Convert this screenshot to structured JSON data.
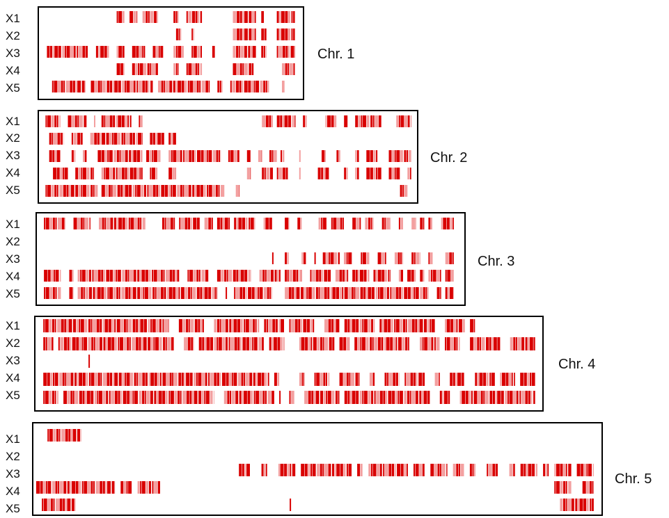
{
  "row_labels": [
    "X1",
    "X2",
    "X3",
    "X4",
    "X5"
  ],
  "colors": {
    "mark_dark": "#d90000",
    "mark_light": "#f3a0a0",
    "frame": "#000000",
    "text": "#111111"
  },
  "chromosomes": [
    {
      "label": "Chr. 1",
      "tracks": [
        [
          [
            0.29,
            0.32
          ],
          [
            0.34,
            0.37
          ],
          [
            0.39,
            0.45
          ],
          [
            0.51,
            0.53
          ],
          [
            0.56,
            0.62
          ],
          [
            0.74,
            0.83
          ],
          [
            0.85,
            0.86
          ],
          [
            0.91,
            0.98
          ]
        ],
        [
          [
            0.52,
            0.54
          ],
          [
            0.58,
            0.59
          ],
          [
            0.74,
            0.83
          ],
          [
            0.85,
            0.87
          ],
          [
            0.91,
            0.98
          ]
        ],
        [
          [
            0.02,
            0.18
          ],
          [
            0.21,
            0.26
          ],
          [
            0.29,
            0.32
          ],
          [
            0.35,
            0.4
          ],
          [
            0.43,
            0.47
          ],
          [
            0.51,
            0.55
          ],
          [
            0.58,
            0.62
          ],
          [
            0.66,
            0.67
          ],
          [
            0.74,
            0.83
          ],
          [
            0.85,
            0.87
          ],
          [
            0.91,
            0.98
          ]
        ],
        [
          [
            0.29,
            0.32
          ],
          [
            0.35,
            0.45
          ],
          [
            0.51,
            0.53
          ],
          [
            0.56,
            0.62
          ],
          [
            0.74,
            0.82
          ],
          [
            0.93,
            0.98
          ]
        ],
        [
          [
            0.04,
            0.17
          ],
          [
            0.19,
            0.43
          ],
          [
            0.45,
            0.65
          ],
          [
            0.68,
            0.7
          ],
          [
            0.73,
            0.88
          ],
          [
            0.93,
            0.94
          ]
        ]
      ]
    },
    {
      "label": "Chr. 2",
      "tracks": [
        [
          [
            0.01,
            0.05
          ],
          [
            0.07,
            0.12
          ],
          [
            0.14,
            0.14
          ],
          [
            0.16,
            0.24
          ],
          [
            0.26,
            0.27
          ],
          [
            0.59,
            0.62
          ],
          [
            0.63,
            0.68
          ],
          [
            0.7,
            0.71
          ],
          [
            0.76,
            0.79
          ],
          [
            0.81,
            0.82
          ],
          [
            0.84,
            0.91
          ],
          [
            0.95,
            0.99
          ]
        ],
        [
          [
            0.02,
            0.06
          ],
          [
            0.08,
            0.11
          ],
          [
            0.13,
            0.27
          ],
          [
            0.29,
            0.33
          ],
          [
            0.34,
            0.36
          ]
        ],
        [
          [
            0.02,
            0.05
          ],
          [
            0.08,
            0.09
          ],
          [
            0.11,
            0.12
          ],
          [
            0.15,
            0.27
          ],
          [
            0.28,
            0.32
          ],
          [
            0.34,
            0.48
          ],
          [
            0.5,
            0.53
          ],
          [
            0.55,
            0.56
          ],
          [
            0.58,
            0.59
          ],
          [
            0.61,
            0.63
          ],
          [
            0.64,
            0.65
          ],
          [
            0.69,
            0.69
          ],
          [
            0.75,
            0.76
          ],
          [
            0.79,
            0.8
          ],
          [
            0.84,
            0.85
          ],
          [
            0.87,
            0.9
          ],
          [
            0.93,
            0.99
          ]
        ],
        [
          [
            0.03,
            0.07
          ],
          [
            0.09,
            0.14
          ],
          [
            0.16,
            0.27
          ],
          [
            0.29,
            0.31
          ],
          [
            0.34,
            0.36
          ],
          [
            0.55,
            0.56
          ],
          [
            0.59,
            0.62
          ],
          [
            0.63,
            0.66
          ],
          [
            0.69,
            0.69
          ],
          [
            0.74,
            0.77
          ],
          [
            0.81,
            0.82
          ],
          [
            0.84,
            0.85
          ],
          [
            0.87,
            0.91
          ],
          [
            0.93,
            0.96
          ],
          [
            0.98,
            0.99
          ]
        ],
        [
          [
            0.01,
            0.15
          ],
          [
            0.16,
            0.49
          ],
          [
            0.52,
            0.53
          ],
          [
            0.96,
            0.98
          ]
        ]
      ]
    },
    {
      "label": "Chr. 3",
      "tracks": [
        [
          [
            0.01,
            0.06
          ],
          [
            0.08,
            0.12
          ],
          [
            0.14,
            0.25
          ],
          [
            0.29,
            0.32
          ],
          [
            0.33,
            0.38
          ],
          [
            0.39,
            0.41
          ],
          [
            0.42,
            0.45
          ],
          [
            0.46,
            0.51
          ],
          [
            0.53,
            0.55
          ],
          [
            0.58,
            0.59
          ],
          [
            0.61,
            0.62
          ],
          [
            0.66,
            0.68
          ],
          [
            0.69,
            0.72
          ],
          [
            0.74,
            0.76
          ],
          [
            0.77,
            0.79
          ],
          [
            0.81,
            0.83
          ],
          [
            0.85,
            0.86
          ],
          [
            0.88,
            0.89
          ],
          [
            0.9,
            0.91
          ],
          [
            0.92,
            0.93
          ],
          [
            0.95,
            0.98
          ]
        ],
        [],
        [
          [
            0.55,
            0.55
          ],
          [
            0.58,
            0.59
          ],
          [
            0.62,
            0.63
          ],
          [
            0.65,
            0.65
          ],
          [
            0.67,
            0.71
          ],
          [
            0.72,
            0.74
          ],
          [
            0.76,
            0.78
          ],
          [
            0.8,
            0.82
          ],
          [
            0.84,
            0.86
          ],
          [
            0.88,
            0.9
          ],
          [
            0.92,
            0.93
          ],
          [
            0.96,
            0.98
          ]
        ],
        [
          [
            0.01,
            0.05
          ],
          [
            0.07,
            0.08
          ],
          [
            0.09,
            0.33
          ],
          [
            0.35,
            0.4
          ],
          [
            0.42,
            0.5
          ],
          [
            0.52,
            0.57
          ],
          [
            0.58,
            0.62
          ],
          [
            0.64,
            0.69
          ],
          [
            0.7,
            0.73
          ],
          [
            0.74,
            0.78
          ],
          [
            0.79,
            0.83
          ],
          [
            0.85,
            0.86
          ],
          [
            0.87,
            0.89
          ],
          [
            0.9,
            0.91
          ],
          [
            0.92,
            0.95
          ],
          [
            0.96,
            0.98
          ]
        ],
        [
          [
            0.01,
            0.05
          ],
          [
            0.07,
            0.08
          ],
          [
            0.09,
            0.42
          ],
          [
            0.44,
            0.44
          ],
          [
            0.46,
            0.55
          ],
          [
            0.58,
            0.92
          ],
          [
            0.94,
            0.95
          ],
          [
            0.96,
            0.98
          ]
        ]
      ]
    },
    {
      "label": "Chr. 4",
      "tracks": [
        [
          [
            0.01,
            0.26
          ],
          [
            0.28,
            0.33
          ],
          [
            0.35,
            0.44
          ],
          [
            0.45,
            0.49
          ],
          [
            0.5,
            0.55
          ],
          [
            0.57,
            0.6
          ],
          [
            0.61,
            0.67
          ],
          [
            0.68,
            0.79
          ],
          [
            0.81,
            0.85
          ],
          [
            0.86,
            0.87
          ]
        ],
        [
          [
            0.01,
            0.03
          ],
          [
            0.04,
            0.27
          ],
          [
            0.29,
            0.31
          ],
          [
            0.32,
            0.45
          ],
          [
            0.46,
            0.49
          ],
          [
            0.52,
            0.59
          ],
          [
            0.6,
            0.62
          ],
          [
            0.63,
            0.74
          ],
          [
            0.76,
            0.8
          ],
          [
            0.81,
            0.84
          ],
          [
            0.86,
            0.92
          ],
          [
            0.94,
            0.99
          ]
        ],
        [
          [
            0.1,
            0.1
          ]
        ],
        [
          [
            0.01,
            0.46
          ],
          [
            0.47,
            0.48
          ],
          [
            0.52,
            0.53
          ],
          [
            0.55,
            0.58
          ],
          [
            0.6,
            0.64
          ],
          [
            0.66,
            0.67
          ],
          [
            0.69,
            0.72
          ],
          [
            0.73,
            0.77
          ],
          [
            0.79,
            0.8
          ],
          [
            0.82,
            0.85
          ],
          [
            0.87,
            0.91
          ],
          [
            0.92,
            0.95
          ],
          [
            0.96,
            0.99
          ]
        ],
        [
          [
            0.01,
            0.04
          ],
          [
            0.05,
            0.35
          ],
          [
            0.37,
            0.47
          ],
          [
            0.48,
            0.48
          ],
          [
            0.5,
            0.51
          ],
          [
            0.53,
            0.6
          ],
          [
            0.61,
            0.78
          ],
          [
            0.8,
            0.82
          ],
          [
            0.84,
            0.99
          ]
        ]
      ]
    },
    {
      "label": "Chr. 5",
      "tracks": [
        [
          [
            0.02,
            0.08
          ]
        ],
        [],
        [
          [
            0.36,
            0.38
          ],
          [
            0.4,
            0.41
          ],
          [
            0.43,
            0.46
          ],
          [
            0.47,
            0.56
          ],
          [
            0.57,
            0.58
          ],
          [
            0.59,
            0.66
          ],
          [
            0.67,
            0.69
          ],
          [
            0.7,
            0.73
          ],
          [
            0.74,
            0.76
          ],
          [
            0.77,
            0.78
          ],
          [
            0.8,
            0.82
          ],
          [
            0.84,
            0.85
          ],
          [
            0.86,
            0.89
          ],
          [
            0.9,
            0.91
          ],
          [
            0.92,
            0.95
          ],
          [
            0.96,
            0.99
          ]
        ],
        [
          [
            0.0,
            0.14
          ],
          [
            0.15,
            0.17
          ],
          [
            0.18,
            0.22
          ],
          [
            0.92,
            0.95
          ],
          [
            0.97,
            0.99
          ]
        ],
        [
          [
            0.01,
            0.07
          ],
          [
            0.45,
            0.45
          ],
          [
            0.93,
            0.99
          ]
        ]
      ]
    }
  ]
}
